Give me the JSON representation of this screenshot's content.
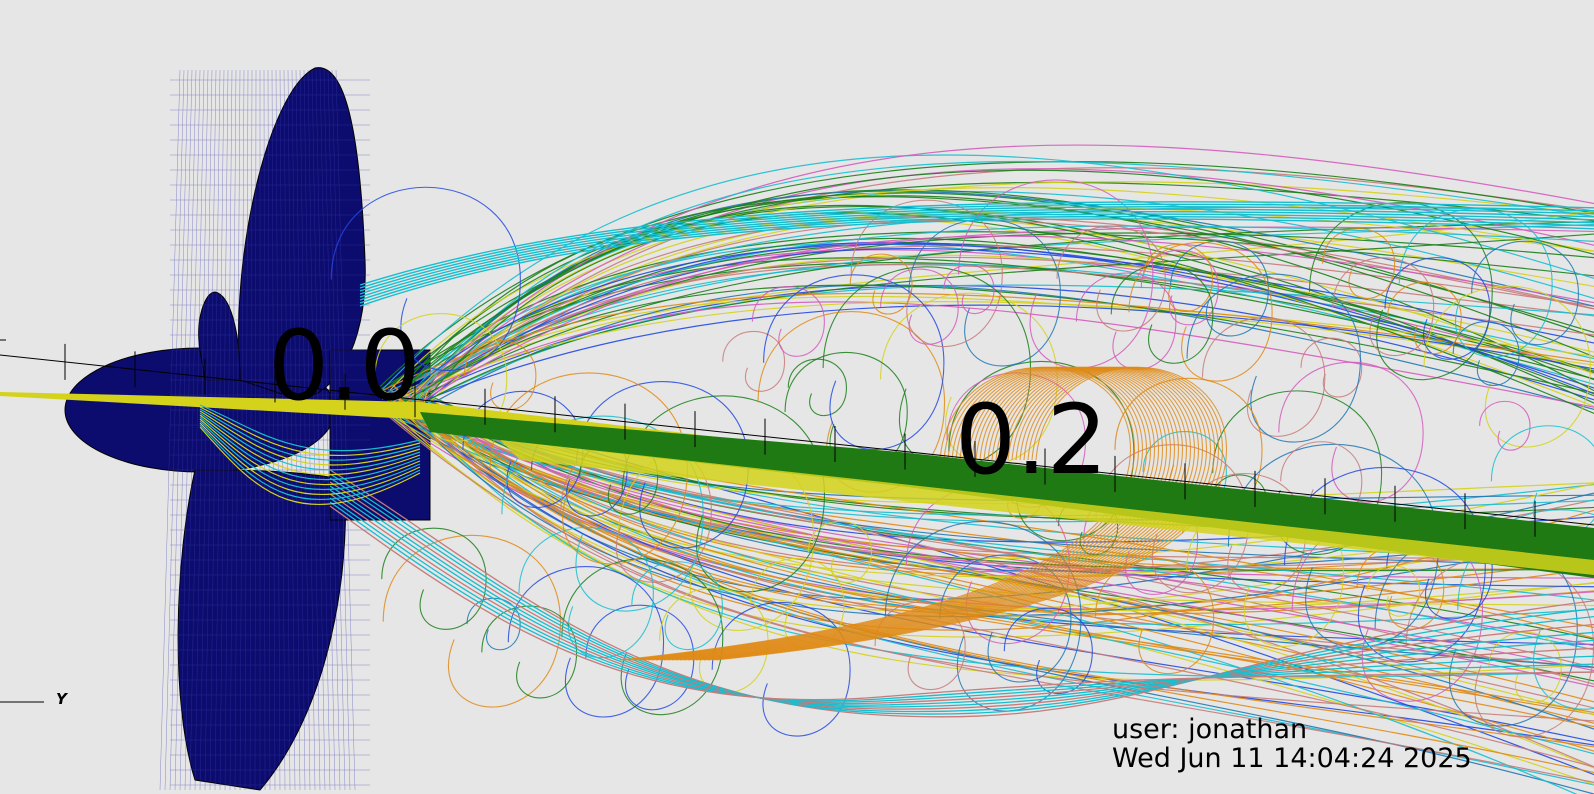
{
  "viewer": {
    "background_color": "#e6e6e6",
    "axis_tick_labels": [
      "0.0",
      "0.2"
    ],
    "triad_axis": "Y",
    "annotation": {
      "user_line": "user: jonathan",
      "date_line": "Wed Jun 11 14:04:24 2025"
    },
    "mesh_color": "#0c0c6e",
    "streamline_colors": [
      "#17becf",
      "#1f77b4",
      "#2249e0",
      "#1a7f1a",
      "#d4d21a",
      "#e08a14",
      "#d45bbd",
      "#c77b7b"
    ],
    "band_colors": {
      "yellow": "#d4d21a",
      "green": "#1f7a14"
    }
  }
}
